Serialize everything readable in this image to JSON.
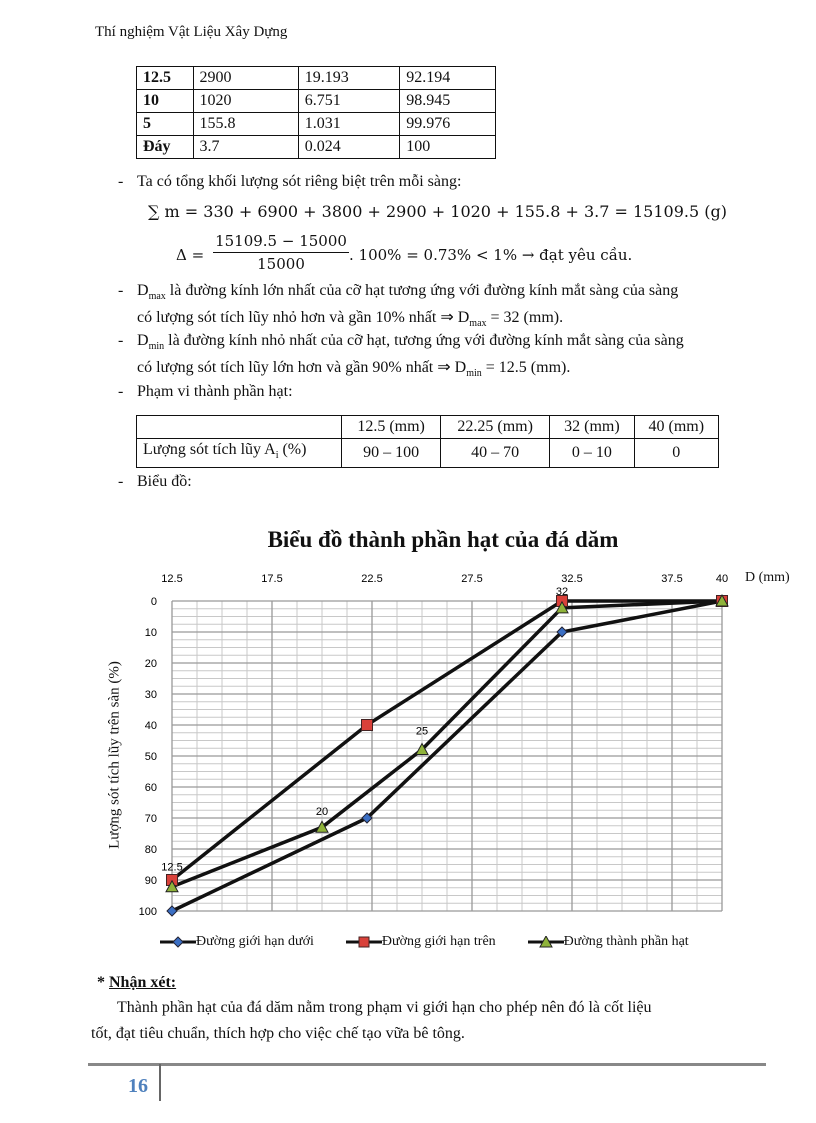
{
  "header": {
    "title": "Thí nghiệm Vật Liệu Xây Dựng"
  },
  "sieve_table": {
    "rows": [
      [
        "12.5",
        "2900",
        "19.193",
        "92.194"
      ],
      [
        "10",
        "1020",
        "6.751",
        "98.945"
      ],
      [
        "5",
        "155.8",
        "1.031",
        "99.976"
      ],
      [
        "Đáy",
        "3.7",
        "0.024",
        "100"
      ]
    ]
  },
  "text": {
    "bullet": "-",
    "total_line": "Ta có tổng khối lượng sót riêng biệt trên mỗi sàng:",
    "sum_formula": "∑ m = 330 + 6900 + 3800 + 2900 + 1020 + 155.8 + 3.7 = 15109.5 (g)",
    "delta_lhs": "Δ =",
    "delta_num": "15109.5 − 15000",
    "delta_den": "15000",
    "delta_rhs": ". 100% = 0.73% < 1%  →  đạt yêu cầu.",
    "dmax_1_a": "D",
    "dmax_1_sub": "max",
    "dmax_1_b": " là đường kính lớn nhất của cỡ hạt tương ứng với đường kính mắt sàng của sàng",
    "dmax_2_a": "có lượng sót tích lũy nhỏ hơn và gần 10% nhất ⇒ D",
    "dmax_2_sub": "max",
    "dmax_2_b": " = 32 (mm).",
    "dmin_1_a": "D",
    "dmin_1_sub": "min",
    "dmin_1_b": " là đường kính nhỏ nhất của cỡ hạt, tương ứng với đường kính mắt sàng của sàng",
    "dmin_2_a": "có lượng sót tích lũy lớn hơn và gần 90% nhất ⇒ D",
    "dmin_2_sub": "min",
    "dmin_2_b": " = 12.5 (mm).",
    "range_line": "Phạm vi thành phần hạt:",
    "chart_line": "Biểu đồ:"
  },
  "range_table": {
    "header": [
      "",
      "12.5 (mm)",
      "22.25 (mm)",
      "32 (mm)",
      "40 (mm)"
    ],
    "row_label_a": "Lượng sót tích lũy A",
    "row_label_sub": "i",
    "row_label_b": " (%)",
    "values": [
      "90 – 100",
      "40 – 70",
      "0 – 10",
      "0"
    ]
  },
  "chart_data": {
    "type": "line",
    "title": "Biểu đồ thành phần hạt của đá dăm",
    "xlabel": "D (mm)",
    "ylabel": "Lượng sót tích lũy trên sàn (%)",
    "xlim": [
      12.5,
      40
    ],
    "ylim": [
      0,
      100
    ],
    "y_inverted": true,
    "x_axis_position": "top",
    "x_ticks": [
      "12.5",
      "17.5",
      "22.5",
      "27.5",
      "32.5",
      "37.5",
      "40"
    ],
    "y_ticks": [
      "0",
      "10",
      "20",
      "30",
      "40",
      "50",
      "60",
      "70",
      "80",
      "90",
      "100"
    ],
    "grid": true,
    "legend": "bottom",
    "series": [
      {
        "name": "Đường giới hạn dưới",
        "marker": "diamond",
        "color": "#3b6fc4",
        "x": [
          12.5,
          22.25,
          32,
          40
        ],
        "y": [
          100,
          70,
          10,
          0
        ]
      },
      {
        "name": "Đường giới hạn trên",
        "marker": "square",
        "color": "#d9413a",
        "x": [
          12.5,
          22.25,
          32,
          40
        ],
        "y": [
          90,
          40,
          0,
          0
        ]
      },
      {
        "name": "Đường thành phần hạt",
        "marker": "triangle",
        "color": "#8fb33a",
        "x": [
          12.5,
          20,
          25,
          32,
          40
        ],
        "y": [
          92.194,
          73,
          47.9,
          2.2,
          0
        ]
      }
    ],
    "annotations": [
      "12.5",
      "20",
      "25",
      "32"
    ]
  },
  "remark": {
    "title_prefix": "* ",
    "title": "Nhận xét:",
    "line1": "Thành phần hạt của đá dăm nằm trong phạm vi giới hạn cho phép nên đó là cốt liệu",
    "line2": "tốt, đạt tiêu chuẩn, thích hợp cho việc chế tạo vữa bê tông."
  },
  "footer": {
    "page_number": "16",
    "page_number_color": "#4f81bd"
  }
}
